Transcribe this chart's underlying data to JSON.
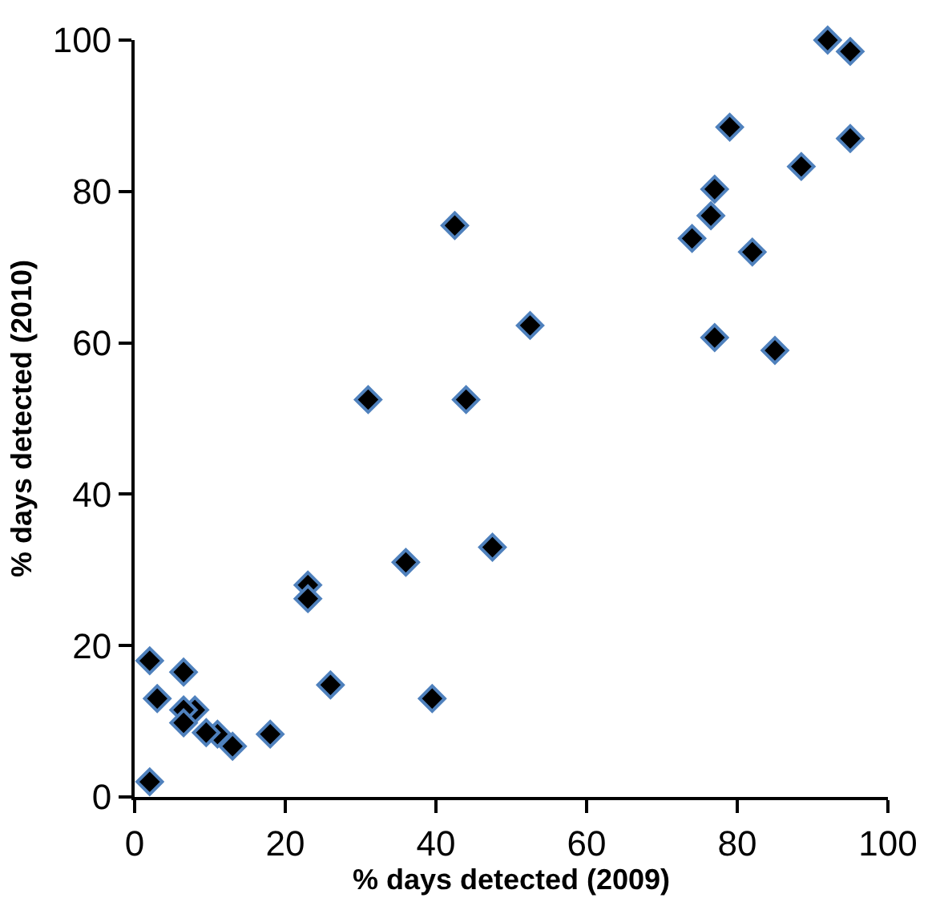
{
  "chart_data": {
    "type": "scatter",
    "xlabel": "% days detected (2009)",
    "ylabel": "% days detected (2010)",
    "x": [
      92,
      95,
      95,
      79,
      88.5,
      77,
      76.5,
      74,
      82,
      77,
      85,
      42.5,
      52.5,
      31,
      44,
      47.5,
      36,
      23,
      23,
      39.5,
      26,
      18,
      13,
      11,
      9.5,
      8,
      6.5,
      6.5,
      6.5,
      3,
      2,
      2
    ],
    "series": [
      {
        "color": "#000000",
        "values": [
          100,
          98.5,
          87,
          88.5,
          83.3,
          80.3,
          76.8,
          73.8,
          72,
          60.7,
          59,
          75.5,
          62.3,
          52.5,
          52.5,
          33,
          31,
          28,
          26.2,
          13,
          14.8,
          8.3,
          6.7,
          8.3,
          8.5,
          11.5,
          11.5,
          9.8,
          16.5,
          13,
          18,
          2
        ]
      }
    ],
    "xlim": [
      0,
      100
    ],
    "ylim": [
      0,
      100
    ],
    "xticks": [
      0,
      20,
      40,
      60,
      80,
      100
    ],
    "yticks": [
      0,
      20,
      40,
      60,
      80,
      100
    ],
    "marker": "diamond"
  }
}
